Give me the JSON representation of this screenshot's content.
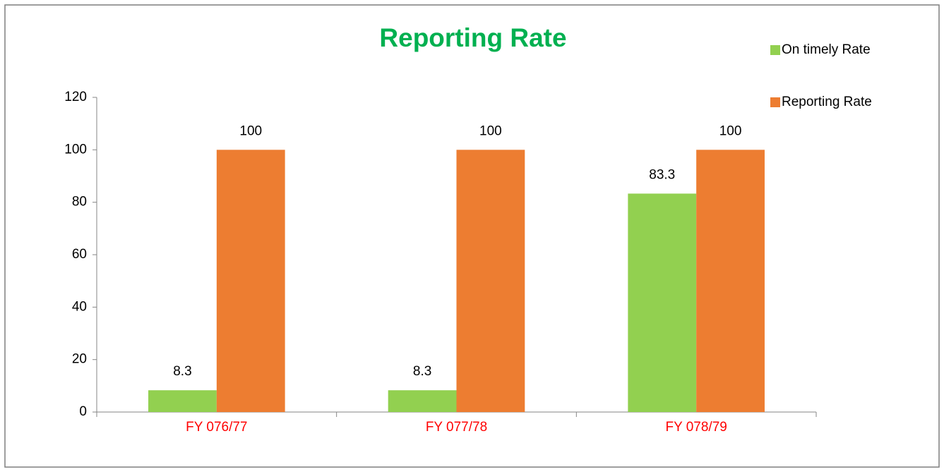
{
  "chart_data": {
    "type": "bar",
    "title": "Reporting Rate",
    "categories": [
      "FY 076/77",
      "FY 077/78",
      "FY 078/79"
    ],
    "series": [
      {
        "name": "On timely Rate",
        "color": "#92d050",
        "values": [
          8.3,
          8.3,
          83.3
        ]
      },
      {
        "name": "Reporting Rate",
        "color": "#ed7d31",
        "values": [
          100,
          100,
          100
        ]
      }
    ],
    "ylim": [
      0,
      120
    ],
    "yticks": [
      0,
      20,
      40,
      60,
      80,
      100,
      120
    ],
    "grid": false,
    "legend": "top-right",
    "title_color": "#00b050",
    "category_color": "#ff0000"
  }
}
